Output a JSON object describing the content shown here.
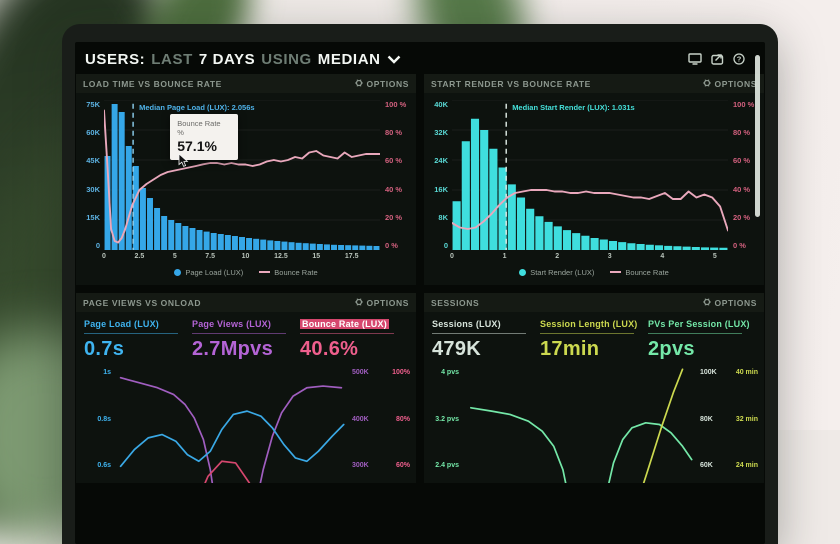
{
  "header": {
    "users": "USERS:",
    "last": "LAST",
    "days": "7 DAYS",
    "using": "USING",
    "median": "MEDIAN",
    "icons": [
      "display-icon",
      "share-icon",
      "help-icon"
    ]
  },
  "labels": {
    "options": "OPTIONS"
  },
  "theme": {
    "screen_bg": "#060906",
    "panel_bg": "#0d120e",
    "panel_header_bg": "#151a14",
    "blue": "#35a7e8",
    "cyan": "#3fdede",
    "pink_line": "#e9a8bc",
    "pink_axis": "#d2607e",
    "purple": "#a05ec0",
    "yellow_green": "#ccd94f",
    "green": "#74e8a8",
    "pale": "#d7e4db"
  },
  "panels": {
    "load_time": {
      "title": "LOAD TIME VS BOUNCE RATE",
      "tooltip": {
        "label": "Bounce Rate",
        "sublabel": "%",
        "value": "57.1%"
      }
    },
    "start_render": {
      "title": "START RENDER VS BOUNCE RATE"
    },
    "page_views": {
      "title": "PAGE VIEWS VS ONLOAD",
      "metrics": [
        {
          "label": "Page Load (LUX)",
          "value": "0.7s"
        },
        {
          "label": "Page Views (LUX)",
          "value": "2.7Mpvs"
        },
        {
          "label": "Bounce Rate (LUX)",
          "value": "40.6%"
        }
      ]
    },
    "sessions": {
      "title": "SESSIONS",
      "metrics": [
        {
          "label": "Sessions (LUX)",
          "value": "479K"
        },
        {
          "label": "Session Length (LUX)",
          "value": "17min"
        },
        {
          "label": "PVs Per Session (LUX)",
          "value": "2pvs"
        }
      ]
    }
  },
  "chart_data": [
    {
      "id": "load-time-histogram",
      "type": "bar",
      "title": "LOAD TIME VS BOUNCE RATE",
      "bar_series": "Page Load (LUX)",
      "line_series": "Bounce Rate",
      "bar_color": "#35a7e8",
      "line_color": "#e9a8bc",
      "tick_color": "#5cb2e2",
      "median_line_color": "#8fd2f2",
      "median_label_color": "#4fb3ea",
      "unit": "K",
      "x_start": 0,
      "x_step": 0.5,
      "x_max": 19.5,
      "y_max": 75,
      "y_ticks": [
        "75K",
        "60K",
        "45K",
        "30K",
        "15K",
        "0"
      ],
      "y2_ticks": [
        "100 %",
        "80 %",
        "60 %",
        "40 %",
        "20 %",
        "0 %"
      ],
      "x_ticks": [
        "0",
        "2.5",
        "5",
        "7.5",
        "10",
        "12.5",
        "15",
        "17.5"
      ],
      "x_tick_vals": [
        0,
        2.5,
        5,
        7.5,
        10,
        12.5,
        15,
        17.5
      ],
      "bars": [
        47,
        73,
        69,
        52,
        42,
        31,
        26,
        21,
        17,
        15,
        13.5,
        12,
        11,
        10,
        9.2,
        8.5,
        8,
        7.5,
        7,
        6.5,
        6,
        5.6,
        5.2,
        4.8,
        4.5,
        4.2,
        3.9,
        3.6,
        3.4,
        3.2,
        3,
        2.8,
        2.6,
        2.5,
        2.4,
        2.3,
        2.2,
        2.1,
        2
      ],
      "line": [
        [
          0,
          93
        ],
        [
          0.25,
          55
        ],
        [
          0.5,
          14
        ],
        [
          0.75,
          6
        ],
        [
          1,
          5
        ],
        [
          1.25,
          8
        ],
        [
          1.5,
          14
        ],
        [
          1.75,
          22
        ],
        [
          2,
          30
        ],
        [
          2.5,
          40
        ],
        [
          3,
          44
        ],
        [
          3.5,
          47
        ],
        [
          4,
          50
        ],
        [
          4.5,
          52
        ],
        [
          5,
          53
        ],
        [
          5.5,
          54
        ],
        [
          6,
          55
        ],
        [
          6.5,
          56
        ],
        [
          7,
          57.1
        ],
        [
          7.5,
          58
        ],
        [
          8,
          58
        ],
        [
          8.5,
          57
        ],
        [
          9,
          58
        ],
        [
          9.5,
          57
        ],
        [
          10,
          57
        ],
        [
          10.5,
          56
        ],
        [
          11,
          57
        ],
        [
          11.5,
          59
        ],
        [
          12,
          60
        ],
        [
          12.5,
          59
        ],
        [
          13,
          60
        ],
        [
          13.5,
          62
        ],
        [
          14,
          61
        ],
        [
          14.5,
          65
        ],
        [
          15,
          66
        ],
        [
          15.5,
          63
        ],
        [
          16,
          62
        ],
        [
          16.5,
          61
        ],
        [
          17,
          65
        ],
        [
          17.5,
          62
        ],
        [
          18,
          63
        ],
        [
          18.5,
          64
        ],
        [
          19,
          64
        ],
        [
          19.5,
          64
        ]
      ],
      "median": {
        "x": 2.056,
        "label": "Median Page Load (LUX): 2.056s"
      }
    },
    {
      "id": "start-render-histogram",
      "type": "bar",
      "title": "START RENDER VS BOUNCE RATE",
      "bar_series": "Start Render (LUX)",
      "line_series": "Bounce Rate",
      "bar_color": "#3fdede",
      "line_color": "#e9a8bc",
      "tick_color": "#59d8d4",
      "median_line_color": "#e2efe8",
      "median_label_color": "#45e0da",
      "unit": "K",
      "x_start": 0,
      "x_step": 0.175,
      "x_max": 5.25,
      "y_max": 40,
      "y_ticks": [
        "40K",
        "32K",
        "24K",
        "16K",
        "8K",
        "0"
      ],
      "y2_ticks": [
        "100 %",
        "80 %",
        "60 %",
        "40 %",
        "20 %",
        "0 %"
      ],
      "x_ticks": [
        "0",
        "1",
        "2",
        "3",
        "4",
        "5"
      ],
      "x_tick_vals": [
        0,
        1,
        2,
        3,
        4,
        5
      ],
      "bars": [
        13,
        29,
        35,
        32,
        27,
        22,
        17.5,
        14,
        11,
        9,
        7.5,
        6.3,
        5.3,
        4.5,
        3.8,
        3.2,
        2.8,
        2.4,
        2.1,
        1.8,
        1.6,
        1.4,
        1.25,
        1.1,
        1,
        0.9,
        0.8,
        0.7,
        0.65,
        0.6
      ],
      "line": [
        [
          0,
          18
        ],
        [
          0.15,
          15
        ],
        [
          0.3,
          14
        ],
        [
          0.45,
          15
        ],
        [
          0.6,
          19
        ],
        [
          0.75,
          24
        ],
        [
          0.9,
          30
        ],
        [
          1.05,
          35
        ],
        [
          1.2,
          38
        ],
        [
          1.35,
          39
        ],
        [
          1.5,
          40
        ],
        [
          1.65,
          40
        ],
        [
          1.8,
          40
        ],
        [
          1.95,
          39
        ],
        [
          2.1,
          39
        ],
        [
          2.25,
          38
        ],
        [
          2.4,
          38
        ],
        [
          2.55,
          39
        ],
        [
          2.7,
          38
        ],
        [
          2.85,
          38
        ],
        [
          3,
          38
        ],
        [
          3.15,
          37
        ],
        [
          3.3,
          36
        ],
        [
          3.45,
          35
        ],
        [
          3.6,
          35
        ],
        [
          3.75,
          34
        ],
        [
          3.9,
          36
        ],
        [
          4.05,
          38
        ],
        [
          4.2,
          34
        ],
        [
          4.35,
          34
        ],
        [
          4.5,
          39
        ],
        [
          4.65,
          35
        ],
        [
          4.8,
          37
        ],
        [
          4.95,
          35
        ],
        [
          5.1,
          29
        ],
        [
          5.25,
          13
        ]
      ],
      "median": {
        "x": 1.031,
        "label": "Median Start Render (LUX): 1.031s"
      }
    },
    {
      "id": "page-views-sparklines",
      "type": "line",
      "left_ticks": [
        "1s",
        "0.8s",
        "0.6s"
      ],
      "left_tick_color": "#3fb4f0",
      "right_ticks": [
        [
          "500K",
          "100%"
        ],
        [
          "400K",
          "80%"
        ],
        [
          "300K",
          "60%"
        ]
      ],
      "right_tick_colors": [
        "#a05ec0",
        "#ef5f8d"
      ],
      "series": [
        {
          "name": "Page Views (LUX)",
          "color": "#a05ec0",
          "points": [
            [
              2,
              7
            ],
            [
              10,
              10
            ],
            [
              18,
              13
            ],
            [
              25,
              17
            ],
            [
              30,
              23
            ],
            [
              34,
              31
            ],
            [
              38,
              44
            ],
            [
              41,
              62
            ],
            [
              44,
              90
            ],
            [
              47,
              115
            ],
            [
              56,
              115
            ],
            [
              60,
              88
            ],
            [
              64,
              62
            ],
            [
              68,
              42
            ],
            [
              72,
              28
            ],
            [
              77,
              18
            ],
            [
              83,
              13
            ],
            [
              90,
              12
            ],
            [
              98,
              13
            ]
          ]
        },
        {
          "name": "Page Load (LUX)",
          "color": "#3aa9e6",
          "points": [
            [
              2,
              60
            ],
            [
              8,
              50
            ],
            [
              14,
              43
            ],
            [
              20,
              41
            ],
            [
              26,
              45
            ],
            [
              31,
              53
            ],
            [
              36,
              57
            ],
            [
              41,
              51
            ],
            [
              46,
              38
            ],
            [
              51,
              29
            ],
            [
              57,
              27
            ],
            [
              63,
              30
            ],
            [
              68,
              37
            ],
            [
              73,
              47
            ],
            [
              78,
              55
            ],
            [
              83,
              57
            ],
            [
              88,
              51
            ],
            [
              94,
              42
            ],
            [
              99,
              35
            ]
          ]
        },
        {
          "name": "Bounce Rate (LUX)",
          "color": "#d6476e",
          "points": [
            [
              28,
              112
            ],
            [
              34,
              85
            ],
            [
              40,
              66
            ],
            [
              46,
              57
            ],
            [
              52,
              58
            ],
            [
              58,
              70
            ],
            [
              64,
              92
            ],
            [
              69,
              115
            ]
          ]
        }
      ]
    },
    {
      "id": "sessions-sparklines",
      "type": "line",
      "left_ticks": [
        "4 pvs",
        "3.2 pvs",
        "2.4 pvs"
      ],
      "left_tick_color": "#74e8a8",
      "right_ticks": [
        [
          "100K",
          "40 min"
        ],
        [
          "80K",
          "32 min"
        ],
        [
          "60K",
          "24 min"
        ]
      ],
      "right_tick_colors": [
        "#d7e4db",
        "#ccd94f"
      ],
      "series": [
        {
          "name": "PVs Per Session (LUX)",
          "color": "#74e8a8",
          "points": [
            [
              3,
              25
            ],
            [
              12,
              27
            ],
            [
              20,
              29
            ],
            [
              28,
              33
            ],
            [
              34,
              39
            ],
            [
              39,
              48
            ],
            [
              43,
              62
            ],
            [
              46,
              82
            ],
            [
              49,
              110
            ],
            [
              57,
              110
            ],
            [
              61,
              82
            ],
            [
              65,
              58
            ],
            [
              69,
              44
            ],
            [
              73,
              37
            ],
            [
              79,
              34
            ],
            [
              85,
              35
            ],
            [
              90,
              40
            ],
            [
              95,
              48
            ],
            [
              99,
              56
            ]
          ]
        },
        {
          "name": "Session Length (LUX)",
          "color": "#ccd94f",
          "points": [
            [
              66,
              118
            ],
            [
              73,
              92
            ],
            [
              80,
              62
            ],
            [
              86,
              36
            ],
            [
              91,
              16
            ],
            [
              95,
              2
            ]
          ]
        }
      ]
    }
  ]
}
